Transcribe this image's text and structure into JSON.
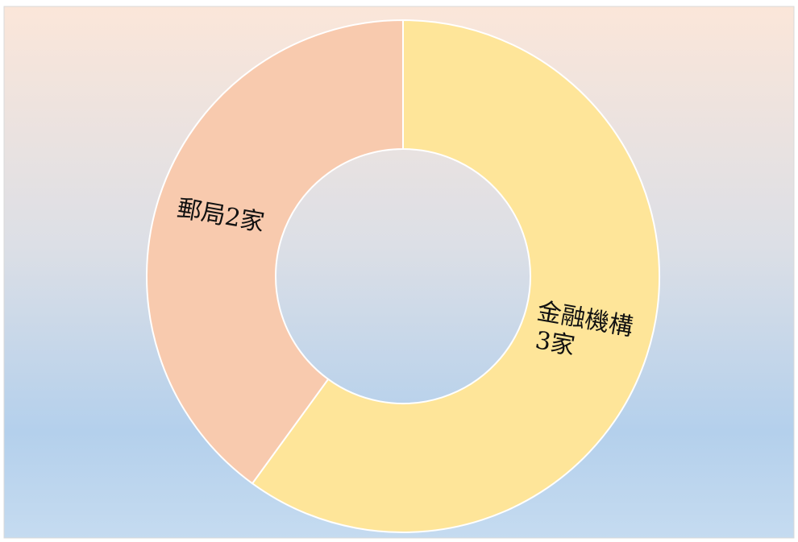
{
  "chart_data": {
    "type": "donut",
    "categories": [
      "金融機構",
      "郵局"
    ],
    "values": [
      3,
      2
    ],
    "value_labels": [
      "3家",
      "2家"
    ],
    "colors": [
      "#fee599",
      "#f8caae"
    ]
  }
}
